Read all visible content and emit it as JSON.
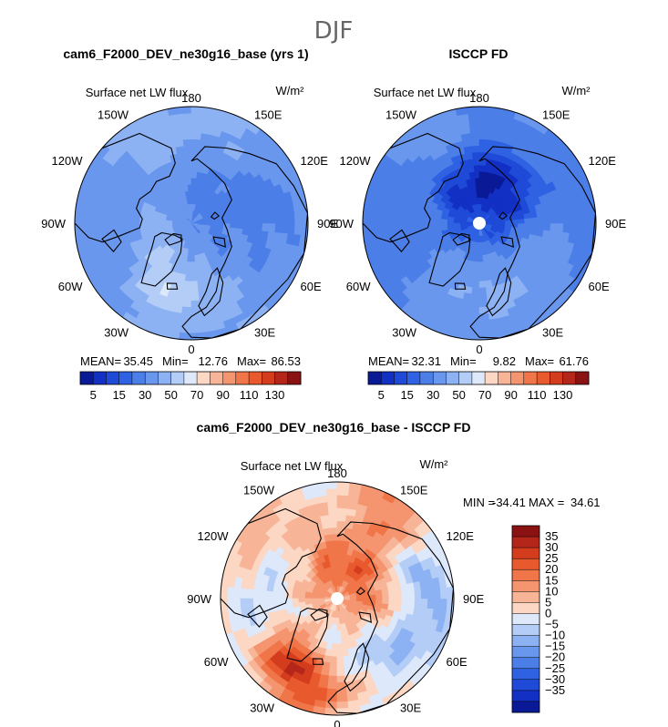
{
  "figure_title": "DJF",
  "colors": {
    "seq": [
      "#0a1a96",
      "#1330c4",
      "#1f4ad8",
      "#2f62e2",
      "#4c7ee8",
      "#6a97ee",
      "#8db2f3",
      "#b3cdf7",
      "#dde8fb",
      "#fcd7c4",
      "#f8b497",
      "#f49570",
      "#f07649",
      "#e85a2e",
      "#d43c1e",
      "#b5261a",
      "#8a1212"
    ],
    "div": [
      "#0a1a96",
      "#1330c4",
      "#1f4ad8",
      "#2f62e2",
      "#4c7ee8",
      "#6a97ee",
      "#8db2f3",
      "#b3cdf7",
      "#dde8fb",
      "#fcd7c4",
      "#f8b497",
      "#f49570",
      "#f07649",
      "#e85a2e",
      "#d43c1e",
      "#b5261a",
      "#8a1212"
    ],
    "coast": "#000000",
    "hole": "#ffffff"
  },
  "chart_data": [
    {
      "type": "heatmap",
      "projection": "north-polar-stereographic",
      "title": "cam6_F2000_DEV_ne30g16_base (yrs 1)",
      "variable": "Surface net LW flux",
      "units": "W/m²",
      "lon_labels": [
        "180",
        "150E",
        "120E",
        "90E",
        "60E",
        "30E",
        "0",
        "30W",
        "60W",
        "90W",
        "120W",
        "150W"
      ],
      "stats": {
        "mean_label": "MEAN=",
        "mean": "35.45",
        "min_label": "Min=",
        "min": "12.76",
        "max_label": "Max=",
        "max": "86.53"
      },
      "colorbar": {
        "orientation": "horizontal",
        "levels": [
          5,
          10,
          15,
          20,
          30,
          40,
          50,
          60,
          70,
          80,
          90,
          100,
          110,
          120,
          130
        ],
        "labels": [
          "5",
          "15",
          "30",
          "50",
          "70",
          "90",
          "110",
          "130"
        ]
      },
      "field": {
        "base": 38,
        "features": [
          {
            "lon": 120,
            "colat": 12,
            "sigma": 12,
            "amp": -12
          },
          {
            "lon": 90,
            "colat": 35,
            "sigma": 10,
            "amp": -10
          },
          {
            "lon": -50,
            "colat": 15,
            "sigma": 8,
            "amp": 12
          },
          {
            "lon": -90,
            "colat": 30,
            "sigma": 10,
            "amp": -6
          },
          {
            "lon": -150,
            "colat": 38,
            "sigma": 9,
            "amp": 6
          },
          {
            "lon": 0,
            "colat": 32,
            "sigma": 8,
            "amp": 10
          },
          {
            "lon": -20,
            "colat": 28,
            "sigma": 6,
            "amp": 14
          },
          {
            "lon": 170,
            "colat": 40,
            "sigma": 8,
            "amp": 5
          }
        ],
        "wave": 4
      }
    },
    {
      "type": "heatmap",
      "projection": "north-polar-stereographic",
      "title": "ISCCP FD",
      "variable": "Surface net LW flux",
      "units": "W/m²",
      "lon_labels": [
        "180",
        "150E",
        "120E",
        "90E",
        "60E",
        "30E",
        "0",
        "30W",
        "60W",
        "90W",
        "120W",
        "150W"
      ],
      "stats": {
        "mean_label": "MEAN=",
        "mean": "32.31",
        "min_label": "Min=",
        "min": "9.82",
        "max_label": "Max=",
        "max": "61.76"
      },
      "colorbar": {
        "orientation": "horizontal",
        "levels": [
          5,
          10,
          15,
          20,
          30,
          40,
          50,
          60,
          70,
          80,
          90,
          100,
          110,
          120,
          130
        ],
        "labels": [
          "5",
          "15",
          "30",
          "50",
          "70",
          "90",
          "110",
          "130"
        ]
      },
      "field": {
        "base": 30,
        "features": [
          {
            "lon": 180,
            "colat": 12,
            "sigma": 14,
            "amp": -18
          },
          {
            "lon": 150,
            "colat": 20,
            "sigma": 10,
            "amp": -10
          },
          {
            "lon": 0,
            "colat": 30,
            "sigma": 10,
            "amp": 12
          },
          {
            "lon": -90,
            "colat": 35,
            "sigma": 10,
            "amp": -8
          },
          {
            "lon": 90,
            "colat": 38,
            "sigma": 10,
            "amp": -6
          },
          {
            "lon": -150,
            "colat": 40,
            "sigma": 8,
            "amp": 8
          },
          {
            "lon": 60,
            "colat": 30,
            "sigma": 8,
            "amp": 6
          }
        ],
        "wave": 3
      },
      "pole_hole": true
    },
    {
      "type": "heatmap",
      "projection": "north-polar-stereographic",
      "title": "cam6_F2000_DEV_ne30g16_base - ISCCP FD",
      "variable": "Surface net LW flux",
      "units": "W/m²",
      "lon_labels": [
        "180",
        "150E",
        "120E",
        "90E",
        "60E",
        "30E",
        "0",
        "30W",
        "60W",
        "90W",
        "120W",
        "150W"
      ],
      "stats_line": {
        "min_label": "MIN =",
        "min": "-34.41",
        "max_label": "MAX =",
        "max": "34.61"
      },
      "colorbar": {
        "orientation": "vertical",
        "levels": [
          -35,
          -30,
          -25,
          -20,
          -15,
          -10,
          -5,
          0,
          5,
          10,
          15,
          20,
          25,
          30,
          35
        ],
        "labels": [
          "35",
          "30",
          "25",
          "20",
          "15",
          "10",
          "5",
          "0",
          "−5",
          "−10",
          "−15",
          "−20",
          "−25",
          "−30",
          "−35"
        ]
      },
      "field": {
        "base": 4,
        "features": [
          {
            "lon": 160,
            "colat": 14,
            "sigma": 10,
            "amp": 22
          },
          {
            "lon": -40,
            "colat": 30,
            "sigma": 9,
            "amp": 24
          },
          {
            "lon": -10,
            "colat": 38,
            "sigma": 7,
            "amp": 18
          },
          {
            "lon": 150,
            "colat": 40,
            "sigma": 9,
            "amp": 14
          },
          {
            "lon": -120,
            "colat": 38,
            "sigma": 9,
            "amp": 12
          },
          {
            "lon": -90,
            "colat": 30,
            "sigma": 8,
            "amp": -14
          },
          {
            "lon": 90,
            "colat": 35,
            "sigma": 10,
            "amp": -12
          },
          {
            "lon": 30,
            "colat": 25,
            "sigma": 8,
            "amp": -10
          },
          {
            "lon": 70,
            "colat": 20,
            "sigma": 7,
            "amp": 10
          }
        ],
        "wave": 5
      },
      "pole_hole": true
    }
  ]
}
